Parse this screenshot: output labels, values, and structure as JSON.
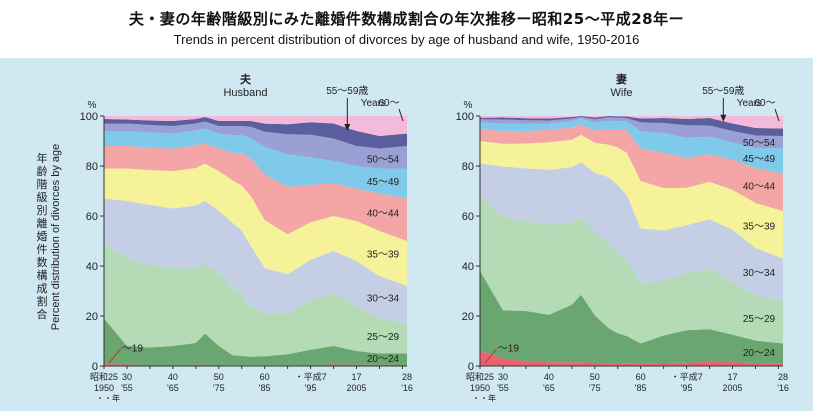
{
  "title_jp": "夫・妻の年齢階級別にみた離婚件数構成割合の年次推移ー昭和25～平成28年ー",
  "title_en": "Trends in percent distribution of divorces by age of husband and wife, 1950-2016",
  "ylabel_jp": "年齢階級別離婚件数構成割合",
  "ylabel_en": "Percent distribution of divorces by age",
  "y_unit": "%",
  "yticks": [
    "0",
    "20",
    "40",
    "60",
    "80",
    "100"
  ],
  "colors": {
    "background": "#cfe8f2",
    "u19": "#e8636f",
    "a20_24": "#6aa66f",
    "a25_29": "#b4dbb6",
    "a30_34": "#c4cfe6",
    "a35_39": "#f6f29a",
    "a40_44": "#f4a5a5",
    "a45_49": "#7fcaea",
    "a50_54": "#9aa0d4",
    "a55_59": "#5c5f9e",
    "a60plus": "#f5b9da"
  },
  "chart_data": [
    {
      "type": "area",
      "name": "husband",
      "title_jp": "夫",
      "title_en": "Husband",
      "ylim": [
        0,
        100
      ],
      "x": [
        1950,
        1955,
        1960,
        1965,
        1970,
        1972,
        1975,
        1978,
        1980,
        1982,
        1985,
        1990,
        1995,
        2000,
        2005,
        2010,
        2016
      ],
      "series": [
        {
          "name": "～19",
          "label": "～19",
          "values": [
            0.8,
            0.6,
            0.4,
            0.4,
            0.5,
            0.5,
            0.4,
            0.3,
            0.3,
            0.3,
            0.3,
            0.3,
            0.4,
            0.6,
            0.5,
            0.5,
            0.4
          ]
        },
        {
          "name": "20～24",
          "label": "20～24",
          "values": [
            18.2,
            7.4,
            7.0,
            7.6,
            8.7,
            12.5,
            7.6,
            4.0,
            3.7,
            3.4,
            3.5,
            4.4,
            6.1,
            7.4,
            5.5,
            4.5,
            4.6
          ]
        },
        {
          "name": "25～29",
          "label": "25～29",
          "values": [
            30,
            35,
            33,
            31,
            30,
            28,
            29,
            27,
            24,
            20,
            17,
            16,
            20,
            21,
            18,
            14,
            12
          ]
        },
        {
          "name": "30～34",
          "label": "30～34",
          "values": [
            18,
            23,
            24,
            24,
            25,
            25,
            25,
            26,
            26,
            24,
            18,
            16,
            16,
            17,
            18,
            17,
            15
          ]
        },
        {
          "name": "35～39",
          "label": "35～39",
          "values": [
            12,
            13,
            14,
            15,
            15,
            15,
            16,
            17,
            18,
            20,
            19,
            16,
            15,
            14,
            16,
            18,
            18
          ]
        },
        {
          "name": "40～44",
          "label": "40～44",
          "values": [
            9,
            9,
            9,
            9,
            9,
            8,
            9,
            11,
            13,
            15,
            18,
            19,
            15,
            13,
            13,
            15,
            17
          ]
        },
        {
          "name": "45～49",
          "label": "45～49",
          "values": [
            6,
            6,
            6,
            6,
            6,
            6,
            6,
            7,
            7,
            8,
            11,
            13,
            11,
            9,
            9,
            10,
            12
          ]
        },
        {
          "name": "50～54",
          "label": "50～54",
          "values": [
            3,
            3,
            3,
            3,
            2.8,
            2.8,
            3,
            3.7,
            3.7,
            4.5,
            6,
            8,
            9,
            9,
            8,
            8,
            9
          ]
        },
        {
          "name": "55～59",
          "label": "55～59",
          "values": [
            1.8,
            1.6,
            1.8,
            2,
            1.8,
            1.8,
            2,
            2,
            2,
            2.3,
            3.2,
            4,
            5,
            6,
            6,
            5,
            5
          ]
        },
        {
          "name": "60～",
          "label": "60～",
          "values": [
            1.2,
            1.4,
            1.8,
            2,
            1.2,
            0.4,
            2,
            2,
            2,
            2,
            3,
            3.3,
            2.5,
            3,
            6,
            8,
            7
          ]
        }
      ]
    },
    {
      "type": "area",
      "name": "wife",
      "title_jp": "妻",
      "title_en": "Wife",
      "ylim": [
        0,
        100
      ],
      "x": [
        1950,
        1955,
        1960,
        1965,
        1970,
        1972,
        1975,
        1978,
        1980,
        1982,
        1985,
        1990,
        1995,
        2000,
        2005,
        2010,
        2016
      ],
      "series": [
        {
          "name": "～19",
          "label": "～19",
          "values": [
            6,
            3,
            2,
            1.5,
            1.5,
            1.5,
            1.3,
            1.1,
            1.0,
            0.9,
            1.0,
            1.2,
            1.3,
            1.7,
            1.5,
            1.2,
            1.0
          ]
        },
        {
          "name": "20～24",
          "label": "20～24",
          "values": [
            32,
            19,
            20,
            19,
            23,
            27,
            19,
            14,
            12,
            11,
            8,
            11,
            13,
            13,
            11,
            9,
            8
          ]
        },
        {
          "name": "25～29",
          "label": "25～29",
          "values": [
            30,
            37,
            36,
            36,
            33,
            31,
            33,
            34,
            32,
            30,
            24,
            22,
            23,
            24,
            21,
            18,
            17
          ]
        },
        {
          "name": "30～34",
          "label": "30～34",
          "values": [
            13,
            20,
            21,
            22,
            22,
            22,
            24,
            26,
            27,
            26,
            22,
            20,
            19,
            20,
            21,
            19,
            17
          ]
        },
        {
          "name": "35～39",
          "label": "35～39",
          "values": [
            9,
            9,
            10,
            11,
            11,
            11,
            12,
            13,
            15,
            17,
            19,
            17,
            15,
            15,
            16,
            18,
            19
          ]
        },
        {
          "name": "40～44",
          "label": "40～44",
          "values": [
            5,
            5,
            5,
            5,
            5,
            4,
            5,
            6,
            7,
            9,
            13,
            14,
            12,
            11,
            12,
            14,
            15
          ]
        },
        {
          "name": "45～49",
          "label": "45～49",
          "values": [
            2.5,
            3,
            3,
            2.5,
            2.5,
            2.5,
            3,
            3.5,
            3.5,
            3.5,
            7,
            8,
            8,
            7,
            7,
            8,
            10
          ]
        },
        {
          "name": "50～54",
          "label": "50～54",
          "values": [
            1.2,
            1.6,
            1.3,
            1.2,
            1,
            0.6,
            1.4,
            1.4,
            1.4,
            1.3,
            3.5,
            4,
            5,
            4.5,
            4.5,
            5,
            5
          ]
        },
        {
          "name": "55～59",
          "label": "55～59",
          "values": [
            0.6,
            0.8,
            0.8,
            0.8,
            0.6,
            0.4,
            0.7,
            0.5,
            0.5,
            0.6,
            1.5,
            2,
            2.5,
            3,
            3,
            3,
            3
          ]
        },
        {
          "name": "60～",
          "label": "60～",
          "values": [
            0.7,
            0.6,
            0.9,
            1,
            0.4,
            0,
            0.6,
            0,
            0.1,
            0.2,
            1,
            0.8,
            1.2,
            0.8,
            3,
            4.8,
            5
          ]
        }
      ]
    }
  ],
  "annotations": {
    "husband": {
      "years_label": "Years",
      "age_label_5559": "55～59歳"
    },
    "wife": {
      "years_label": "Years",
      "age_label_5559": "55～59歳"
    }
  },
  "xaxis": {
    "ticks_top": [
      "昭和25",
      "30",
      "40",
      "50",
      "60",
      "・平成7",
      "17",
      "28"
    ],
    "ticks_bottom": [
      "1950",
      "'55",
      "'65",
      "'75",
      "'85",
      "'95",
      "2005",
      "'16"
    ],
    "nen_label": "・・年"
  }
}
